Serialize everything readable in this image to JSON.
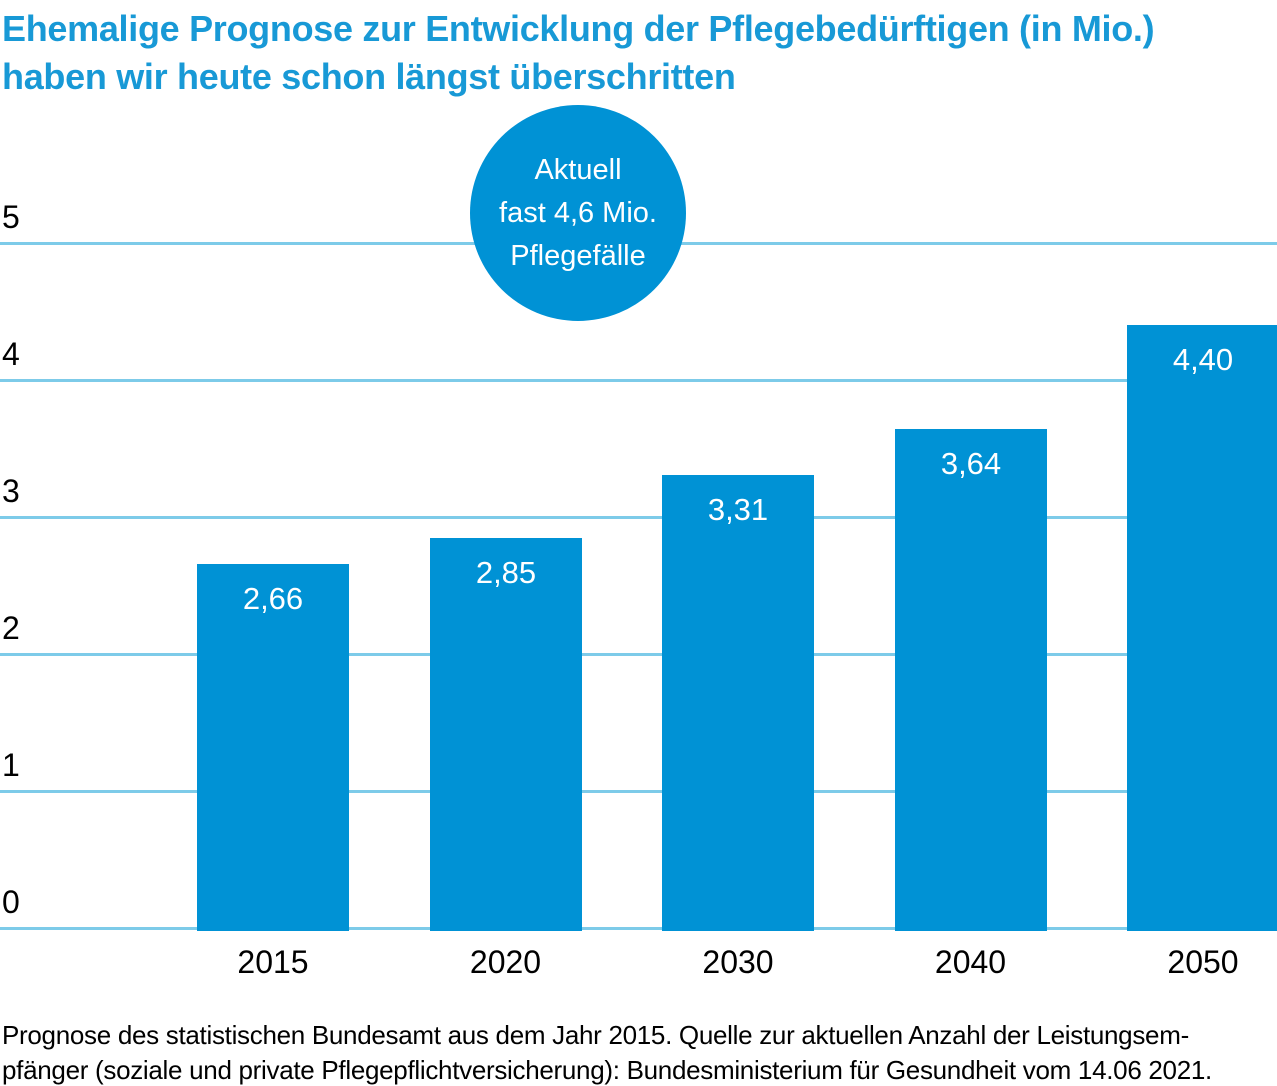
{
  "header": {
    "title_lines": [
      "Ehemalige Prognose zur Entwicklung der Pflegebedürftigen (in Mio.)",
      "haben wir heute schon längst überschritten"
    ]
  },
  "annotation_circle": {
    "lines": [
      "Aktuell",
      "fast 4,6 Mio.",
      "Pflegefälle"
    ]
  },
  "footer": {
    "lines": [
      "Prognose des statistischen Bundesamt aus dem Jahr 2015. Quelle zur aktuellen Anzahl der Leistungsem-",
      "pfänger (soziale und private Pflegepflichtversicherung): Bundesministerium für Gesundheit vom 14.06 2021."
    ]
  },
  "colors": {
    "primary_blue": "#0092d5",
    "title_blue": "#1899d6",
    "gridline_blue": "#7dcbe9",
    "text_black": "#000000",
    "label_white": "#ffffff"
  },
  "chart_data": {
    "type": "bar",
    "title": "Ehemalige Prognose zur Entwicklung der Pflegebedürftigen (in Mio.) haben wir heute schon längst überschritten",
    "categories": [
      "2015",
      "2020",
      "2030",
      "2040",
      "2050"
    ],
    "values": [
      2.66,
      2.85,
      3.31,
      3.64,
      4.4
    ],
    "value_labels": [
      "2,66",
      "2,85",
      "3,31",
      "3,64",
      "4,40"
    ],
    "xlabel": "",
    "ylabel": "",
    "ylim": [
      0,
      5
    ],
    "yticks": [
      0,
      1,
      2,
      3,
      4,
      5
    ],
    "grid": true,
    "legend": "none",
    "annotation": "Aktuell fast 4,6 Mio. Pflegefälle",
    "bar_color": "#0092d5"
  }
}
